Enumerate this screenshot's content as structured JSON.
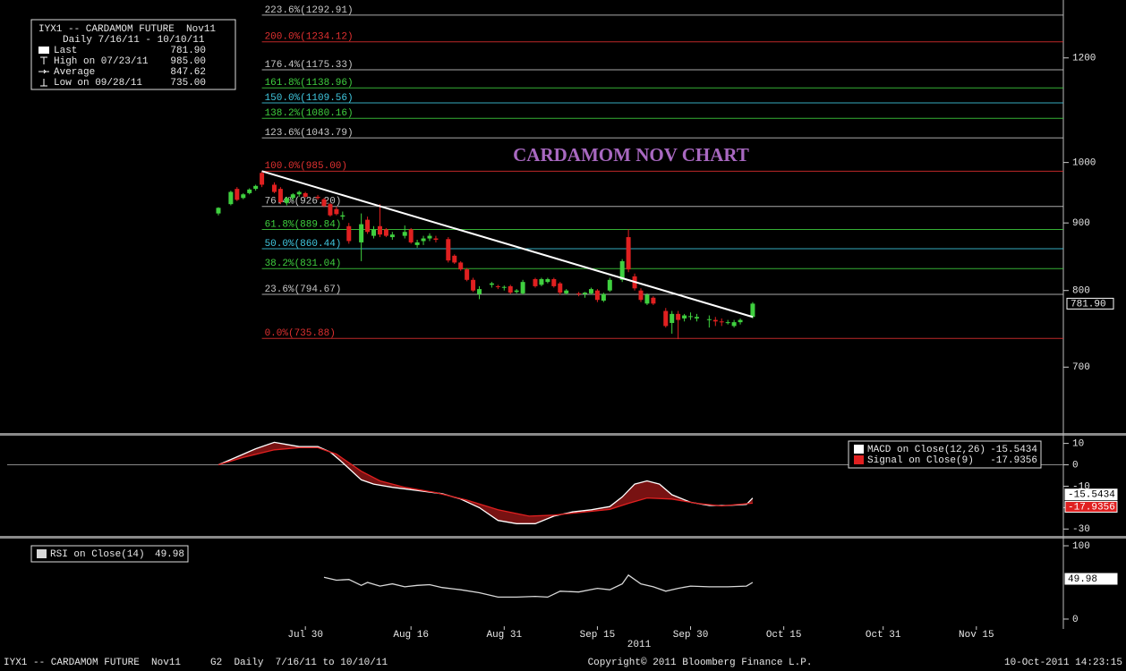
{
  "chart_data": [
    {
      "type": "candlestick",
      "title": "CARDAMOM NOV CHART",
      "info": {
        "name": "IYX1 -- CARDAMOM FUTURE  Nov11",
        "range": "Daily 7/16/11 - 10/10/11",
        "stats": [
          {
            "label": "Last",
            "value": 781.9,
            "value_label": "781.90"
          },
          {
            "label": "High on 07/23/11",
            "value": 985,
            "value_label": "985.00"
          },
          {
            "label": "Average",
            "value": 847.62,
            "value_label": "847.62"
          },
          {
            "label": "Low on 09/28/11",
            "value": 735,
            "value_label": "735.00"
          }
        ]
      },
      "up_color": "#3fd03f",
      "down_color": "#e02020",
      "log_scale": true,
      "xlim": [
        "2011-06-12",
        "2011-11-29"
      ],
      "xticks": [
        {
          "value": "2011-07-30",
          "label": "Jul 30"
        },
        {
          "value": "2011-08-16",
          "label": "Aug 16"
        },
        {
          "value": "2011-08-31",
          "label": "Aug 31"
        },
        {
          "value": "2011-09-15",
          "label": "Sep 15"
        },
        {
          "value": "2011-09-30",
          "label": "Sep 30"
        },
        {
          "value": "2011-10-15",
          "label": "Oct 15"
        },
        {
          "value": "2011-10-31",
          "label": "Oct 31"
        },
        {
          "value": "2011-11-15",
          "label": "Nov 15"
        }
      ],
      "x_year_label": "2011",
      "ylim": [
        625,
        1311
      ],
      "yticks": [
        700,
        800,
        900,
        1000,
        1200
      ],
      "dates": [
        "2011-07-16",
        "2011-07-18",
        "2011-07-19",
        "2011-07-20",
        "2011-07-21",
        "2011-07-22",
        "2011-07-23",
        "2011-07-25",
        "2011-07-26",
        "2011-07-27",
        "2011-07-28",
        "2011-07-29",
        "2011-07-30",
        "2011-08-01",
        "2011-08-02",
        "2011-08-03",
        "2011-08-04",
        "2011-08-05",
        "2011-08-06",
        "2011-08-08",
        "2011-08-09",
        "2011-08-10",
        "2011-08-11",
        "2011-08-12",
        "2011-08-13",
        "2011-08-15",
        "2011-08-16",
        "2011-08-17",
        "2011-08-18",
        "2011-08-19",
        "2011-08-20",
        "2011-08-22",
        "2011-08-23",
        "2011-08-24",
        "2011-08-25",
        "2011-08-26",
        "2011-08-27",
        "2011-08-29",
        "2011-08-30",
        "2011-08-31",
        "2011-09-01",
        "2011-09-02",
        "2011-09-03",
        "2011-09-05",
        "2011-09-06",
        "2011-09-07",
        "2011-09-08",
        "2011-09-09",
        "2011-09-10",
        "2011-09-12",
        "2011-09-13",
        "2011-09-14",
        "2011-09-15",
        "2011-09-16",
        "2011-09-17",
        "2011-09-19",
        "2011-09-20",
        "2011-09-21",
        "2011-09-22",
        "2011-09-23",
        "2011-09-24",
        "2011-09-26",
        "2011-09-27",
        "2011-09-28",
        "2011-09-29",
        "2011-09-30",
        "2011-10-01",
        "2011-10-03",
        "2011-10-04",
        "2011-10-05",
        "2011-10-06",
        "2011-10-07",
        "2011-10-08",
        "2011-10-10"
      ],
      "ohlc": [
        [
          915,
          925,
          912,
          924
        ],
        [
          930,
          952,
          928,
          950
        ],
        [
          955,
          958,
          935,
          937
        ],
        [
          940,
          948,
          938,
          946
        ],
        [
          948,
          956,
          946,
          954
        ],
        [
          955,
          962,
          952,
          960
        ],
        [
          982,
          985,
          958,
          962
        ],
        [
          962,
          966,
          948,
          950
        ],
        [
          955,
          958,
          930,
          933
        ],
        [
          932,
          942,
          928,
          940
        ],
        [
          940,
          948,
          936,
          946
        ],
        [
          946,
          952,
          942,
          950
        ],
        [
          948,
          950,
          940,
          942
        ],
        [
          942,
          945,
          937,
          940
        ],
        [
          938,
          940,
          925,
          927
        ],
        [
          930,
          932,
          910,
          912
        ],
        [
          922,
          926,
          912,
          914
        ],
        [
          910,
          918,
          905,
          912
        ],
        [
          895,
          900,
          868,
          872
        ],
        [
          870,
          915,
          842,
          898
        ],
        [
          905,
          910,
          883,
          886
        ],
        [
          880,
          895,
          876,
          890
        ],
        [
          895,
          930,
          878,
          882
        ],
        [
          890,
          892,
          878,
          880
        ],
        [
          878,
          886,
          874,
          882
        ],
        [
          880,
          896,
          876,
          886
        ],
        [
          890,
          892,
          868,
          870
        ],
        [
          866,
          874,
          862,
          870
        ],
        [
          872,
          880,
          866,
          876
        ],
        [
          876,
          884,
          872,
          880
        ],
        [
          876,
          880,
          870,
          874
        ],
        [
          875,
          878,
          840,
          843
        ],
        [
          850,
          852,
          838,
          840
        ],
        [
          840,
          842,
          828,
          830
        ],
        [
          830,
          832,
          813,
          815
        ],
        [
          815,
          818,
          798,
          800
        ],
        [
          795,
          806,
          788,
          802
        ],
        [
          808,
          812,
          804,
          810
        ],
        [
          806,
          808,
          802,
          805
        ],
        [
          804,
          807,
          800,
          805
        ],
        [
          806,
          808,
          795,
          797
        ],
        [
          798,
          802,
          796,
          800
        ],
        [
          796,
          815,
          794,
          812
        ],
        [
          816,
          818,
          804,
          806
        ],
        [
          808,
          818,
          806,
          816
        ],
        [
          812,
          818,
          810,
          816
        ],
        [
          816,
          818,
          804,
          806
        ],
        [
          810,
          812,
          794,
          797
        ],
        [
          796,
          802,
          794,
          800
        ],
        [
          796,
          798,
          792,
          795
        ],
        [
          795,
          798,
          790,
          797
        ],
        [
          796,
          804,
          794,
          802
        ],
        [
          800,
          802,
          784,
          787
        ],
        [
          786,
          797,
          784,
          795
        ],
        [
          800,
          818,
          798,
          815
        ],
        [
          815,
          845,
          812,
          842
        ],
        [
          878,
          890,
          826,
          830
        ],
        [
          820,
          824,
          800,
          803
        ],
        [
          800,
          803,
          784,
          787
        ],
        [
          782,
          796,
          780,
          794
        ],
        [
          790,
          792,
          780,
          782
        ],
        [
          772,
          776,
          750,
          752
        ],
        [
          756,
          772,
          742,
          768
        ],
        [
          768,
          772,
          735,
          760
        ],
        [
          762,
          768,
          758,
          766
        ],
        [
          764,
          770,
          760,
          765
        ],
        [
          762,
          768,
          758,
          764
        ],
        [
          760,
          766,
          750,
          761
        ],
        [
          760,
          764,
          752,
          758
        ],
        [
          758,
          762,
          752,
          757
        ],
        [
          756,
          760,
          754,
          757
        ],
        [
          752,
          760,
          750,
          757
        ],
        [
          757,
          762,
          754,
          760
        ],
        [
          764,
          784,
          762,
          781.9
        ]
      ],
      "fib_levels": [
        {
          "value": 1292.91,
          "label": "223.6%(1292.91)",
          "color": "#c8c8c8"
        },
        {
          "value": 1234.12,
          "label": "200.0%(1234.12)",
          "color": "#e03030"
        },
        {
          "value": 1175.33,
          "label": "176.4%(1175.33)",
          "color": "#c8c8c8"
        },
        {
          "value": 1138.96,
          "label": "161.8%(1138.96)",
          "color": "#3fd03f"
        },
        {
          "value": 1109.56,
          "label": "150.0%(1109.56)",
          "color": "#40c8e0"
        },
        {
          "value": 1080.16,
          "label": "138.2%(1080.16)",
          "color": "#3fd03f"
        },
        {
          "value": 1043.79,
          "label": "123.6%(1043.79)",
          "color": "#c8c8c8"
        },
        {
          "value": 985,
          "label": "100.0%(985.00)",
          "color": "#e03030"
        },
        {
          "value": 926.2,
          "label": "76.4%(926.20)",
          "color": "#c8c8c8"
        },
        {
          "value": 889.84,
          "label": "61.8%(889.84)",
          "color": "#3fd03f"
        },
        {
          "value": 860.44,
          "label": "50.0%(860.44)",
          "color": "#40c8e0"
        },
        {
          "value": 831.04,
          "label": "38.2%(831.04)",
          "color": "#3fd03f"
        },
        {
          "value": 794.67,
          "label": "23.6%(794.67)",
          "color": "#c8c8c8"
        },
        {
          "value": 735.88,
          "label": "0.0%(735.88)",
          "color": "#e03030"
        }
      ],
      "fib_start": "2011-07-23",
      "trendline": {
        "x": [
          "2011-07-23",
          "2011-10-10"
        ],
        "y": [
          985,
          764
        ],
        "color": "#ffffff"
      }
    },
    {
      "type": "line",
      "ylim": [
        -32.8,
        13.6
      ],
      "yticks": [
        10,
        0,
        -10,
        -20,
        -30
      ],
      "legend": "upper right",
      "band_color": "#a01818",
      "series": [
        {
          "name": "MACD on Close(12,26)",
          "color": "#ffffff",
          "x": [
            "2011-07-16",
            "2011-07-18",
            "2011-07-20",
            "2011-07-22",
            "2011-07-25",
            "2011-07-27",
            "2011-07-29",
            "2011-08-01",
            "2011-08-03",
            "2011-08-05",
            "2011-08-08",
            "2011-08-10",
            "2011-08-13",
            "2011-08-17",
            "2011-08-21",
            "2011-08-24",
            "2011-08-27",
            "2011-08-30",
            "2011-09-02",
            "2011-09-05",
            "2011-09-08",
            "2011-09-11",
            "2011-09-14",
            "2011-09-17",
            "2011-09-19",
            "2011-09-21",
            "2011-09-23",
            "2011-09-25",
            "2011-09-27",
            "2011-09-30",
            "2011-10-03",
            "2011-10-06",
            "2011-10-09",
            "2011-10-10"
          ],
          "values": [
            0,
            2.5,
            5,
            7.5,
            10.5,
            9.5,
            8.5,
            8.5,
            6,
            1,
            -7,
            -9,
            -10.5,
            -12,
            -13.5,
            -16,
            -20,
            -26,
            -27.5,
            -27.5,
            -24,
            -22,
            -21,
            -19.5,
            -15,
            -9,
            -7.5,
            -9,
            -14,
            -17.5,
            -19,
            -19,
            -18.5,
            -15.5434
          ]
        },
        {
          "name": "Signal on Close(9)",
          "color": "#e02020",
          "x": [
            "2011-07-16",
            "2011-07-20",
            "2011-07-25",
            "2011-07-29",
            "2011-08-01",
            "2011-08-04",
            "2011-08-08",
            "2011-08-11",
            "2011-08-15",
            "2011-08-20",
            "2011-08-25",
            "2011-08-30",
            "2011-09-04",
            "2011-09-08",
            "2011-09-13",
            "2011-09-17",
            "2011-09-20",
            "2011-09-23",
            "2011-09-27",
            "2011-10-01",
            "2011-10-05",
            "2011-10-10"
          ],
          "values": [
            0,
            3.5,
            7,
            8,
            8,
            5,
            -3,
            -7.5,
            -10.5,
            -13,
            -16.5,
            -21,
            -24,
            -23.5,
            -22,
            -20.8,
            -18,
            -15.5,
            -16,
            -18,
            -19.2,
            -17.9356
          ]
        }
      ]
    },
    {
      "type": "line",
      "ylim": [
        -9.8,
        109.8
      ],
      "yticks": [
        100,
        0
      ],
      "legend": "upper left",
      "series": [
        {
          "name": "RSI on Close(14)",
          "color": "#d8d8d8",
          "x": [
            "2011-08-02",
            "2011-08-04",
            "2011-08-06",
            "2011-08-08",
            "2011-08-09",
            "2011-08-11",
            "2011-08-13",
            "2011-08-15",
            "2011-08-17",
            "2011-08-19",
            "2011-08-21",
            "2011-08-24",
            "2011-08-27",
            "2011-08-30",
            "2011-09-02",
            "2011-09-05",
            "2011-09-07",
            "2011-09-09",
            "2011-09-12",
            "2011-09-15",
            "2011-09-17",
            "2011-09-19",
            "2011-09-20",
            "2011-09-22",
            "2011-09-24",
            "2011-09-26",
            "2011-09-28",
            "2011-09-30",
            "2011-10-03",
            "2011-10-06",
            "2011-10-09",
            "2011-10-10"
          ],
          "values": [
            57,
            53,
            54,
            46,
            50,
            45,
            48,
            44,
            46,
            47,
            43,
            40,
            36,
            30,
            30,
            31,
            30,
            38,
            37,
            42,
            40,
            48,
            60,
            48,
            44,
            38,
            42,
            45,
            44,
            44,
            45,
            49.98
          ]
        }
      ]
    }
  ],
  "footer": {
    "left": "IYX1 -- CARDAMOM FUTURE  Nov11     G2  Daily  7/16/11 to 10/10/11",
    "center": "Copyright© 2011 Bloomberg Finance L.P.",
    "right": "10-Oct-2011 14:23:15"
  }
}
